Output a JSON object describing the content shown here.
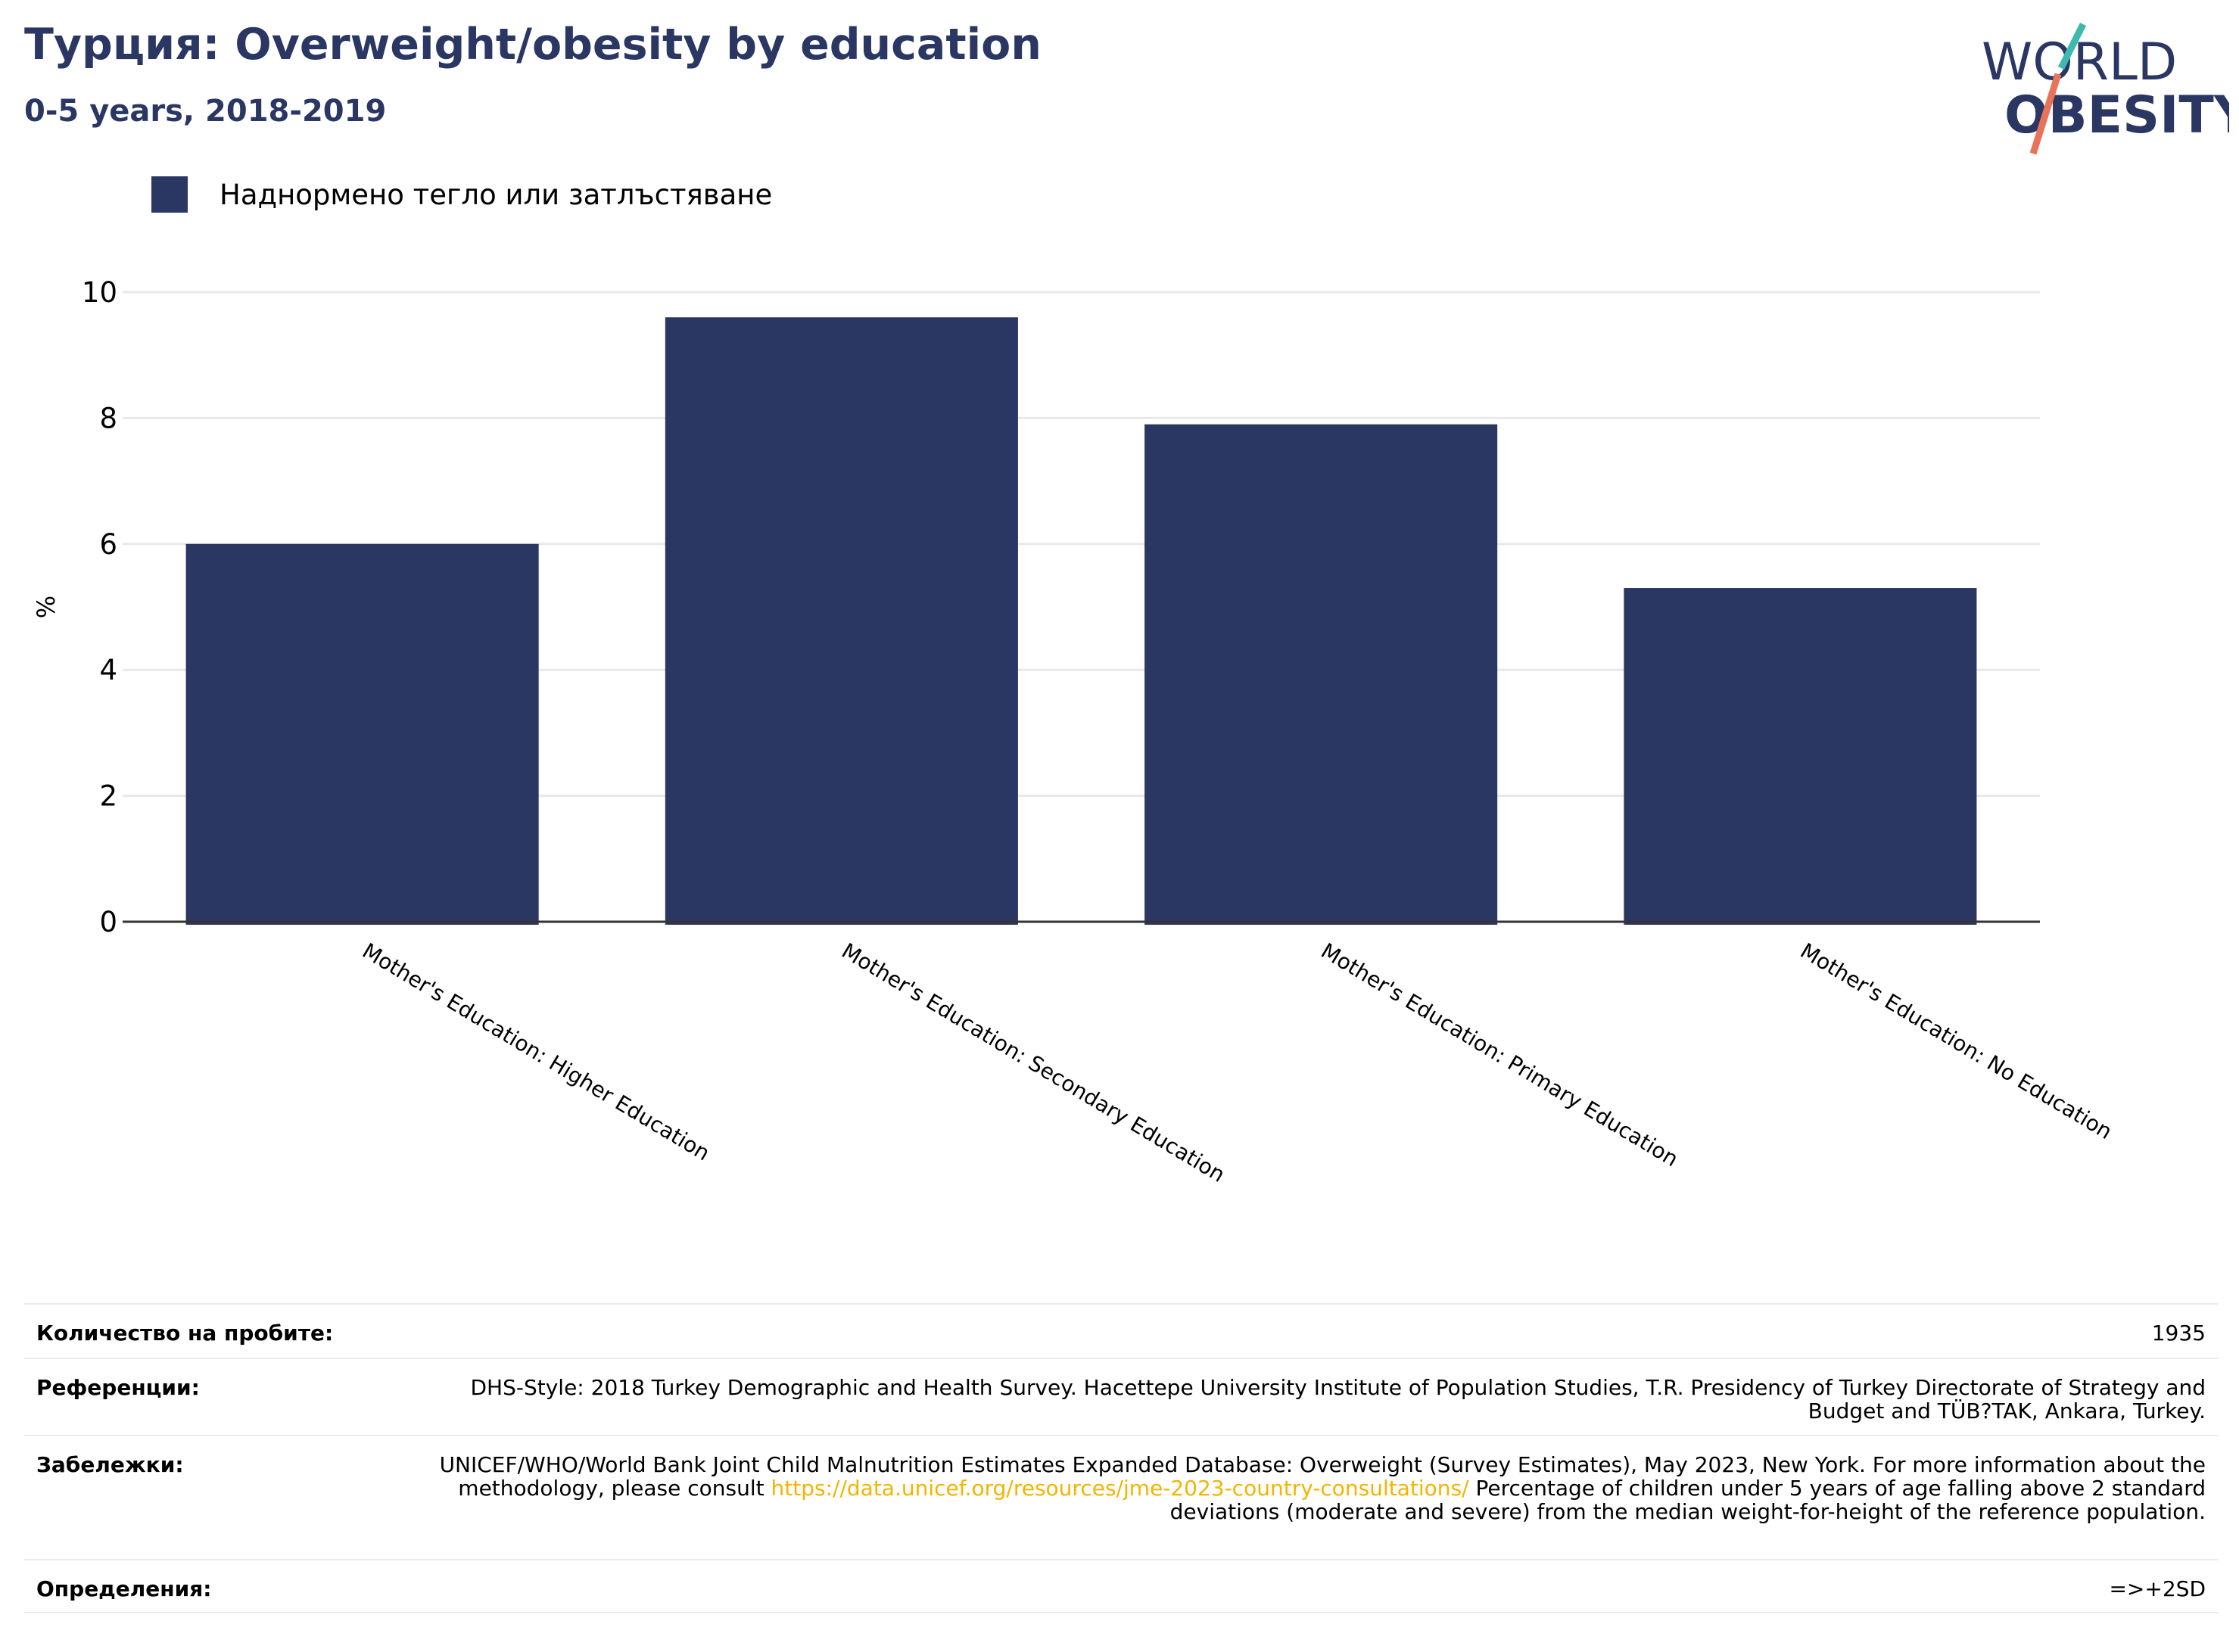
{
  "header": {
    "title": "Турция: Overweight/obesity by education",
    "subtitle": "0-5 years, 2018-2019"
  },
  "logo": {
    "line1": "WORLD",
    "line2": "OBESITY",
    "icon": "world-obesity-logo"
  },
  "chart_data": {
    "type": "bar",
    "title": "Турция: Overweight/obesity by education",
    "subtitle": "0-5 years, 2018-2019",
    "categories": [
      "Mother's Education: Higher Education",
      "Mother's Education: Secondary Education",
      "Mother's Education: Primary Education",
      "Mother's Education: No Education"
    ],
    "series": [
      {
        "name": "Наднормено тегло или затлъстяване",
        "values": [
          6.0,
          9.6,
          7.9,
          5.3
        ],
        "color": "#2b3763"
      }
    ],
    "ylabel": "%",
    "xlabel": "",
    "ylim": [
      0,
      10
    ],
    "yticks": [
      0,
      2,
      4,
      6,
      8,
      10
    ],
    "grid": true,
    "legend": "top-left"
  },
  "info": {
    "sample_label": "Количество на пробите:",
    "sample_value": "1935",
    "references_label": "Референции:",
    "references_value": "DHS-Style: 2018 Turkey Demographic and Health Survey. Hacettepe University Institute of Population Studies, T.R. Presidency of Turkey Directorate of Strategy and Budget and TÜB?TAK, Ankara, Turkey.",
    "notes_label": "Забележки:",
    "notes_before": "UNICEF/WHO/World Bank Joint Child Malnutrition Estimates Expanded Database: Overweight (Survey Estimates), May 2023, New York. For more information about the methodology, please consult ",
    "notes_link": "https://data.unicef.org/resources/jme-2023-country-consultations/",
    "notes_after": " Percentage of children under 5 years of age falling above 2 standard deviations (moderate and severe) from the median weight-for-height of the reference population.",
    "definitions_label": "Определения:",
    "definitions_value": "=>+2SD"
  }
}
